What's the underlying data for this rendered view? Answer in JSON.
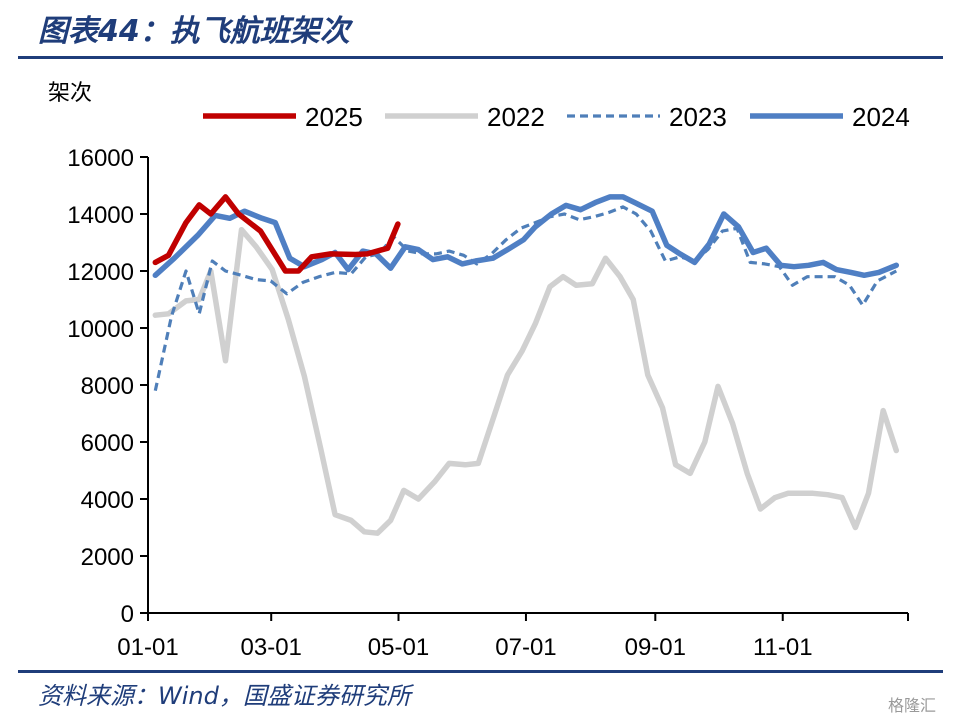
{
  "header": {
    "title": "图表44：执飞航班架次"
  },
  "footer": {
    "source": "资料来源：Wind，国盛证券研究所"
  },
  "watermark": {
    "text": "格隆汇"
  },
  "chart_data": {
    "type": "line",
    "title": "",
    "ylabel": "架次",
    "xlabel": "",
    "ylim": [
      0,
      16000
    ],
    "yticks": [
      0,
      2000,
      4000,
      6000,
      8000,
      10000,
      12000,
      14000,
      16000
    ],
    "ytick_labels": [
      "0",
      "2000",
      "4000",
      "6000",
      "8000",
      "10000",
      "12000",
      "14000",
      "16000"
    ],
    "xlim_weeks": [
      0,
      52
    ],
    "xticks": [
      {
        "label": "01-01",
        "week": 0
      },
      {
        "label": "03-01",
        "week": 8.43
      },
      {
        "label": "05-01",
        "week": 17.14
      },
      {
        "label": "07-01",
        "week": 25.86
      },
      {
        "label": "09-01",
        "week": 34.71
      },
      {
        "label": "11-01",
        "week": 43.43
      }
    ],
    "legend_position": "top",
    "grid": false,
    "series": [
      {
        "name": "2025",
        "color": "#C00000",
        "style": "solid",
        "width": 5.5,
        "points": [
          [
            0.5,
            12300
          ],
          [
            1.4,
            12550
          ],
          [
            2.6,
            13700
          ],
          [
            3.5,
            14320
          ],
          [
            4.3,
            14000
          ],
          [
            5.3,
            14600
          ],
          [
            6.2,
            14000
          ],
          [
            7.7,
            13400
          ],
          [
            9.4,
            12000
          ],
          [
            10.3,
            12000
          ],
          [
            11.2,
            12500
          ],
          [
            12.5,
            12600
          ],
          [
            14.2,
            12580
          ],
          [
            15.0,
            12600
          ],
          [
            16.4,
            12800
          ],
          [
            17.1,
            13650
          ]
        ]
      },
      {
        "name": "2022",
        "color": "#D0D0D0",
        "style": "solid",
        "width": 5.5,
        "points": [
          [
            0.5,
            10450
          ],
          [
            1.4,
            10500
          ],
          [
            2.6,
            10950
          ],
          [
            3.5,
            11000
          ],
          [
            4.3,
            12000
          ],
          [
            5.3,
            8850
          ],
          [
            6.4,
            13450
          ],
          [
            7.4,
            12850
          ],
          [
            8.5,
            12050
          ],
          [
            9.6,
            10300
          ],
          [
            10.7,
            8300
          ],
          [
            11.8,
            5800
          ],
          [
            12.8,
            3450
          ],
          [
            13.9,
            3250
          ],
          [
            14.8,
            2850
          ],
          [
            15.7,
            2800
          ],
          [
            16.6,
            3250
          ],
          [
            17.5,
            4300
          ],
          [
            18.5,
            4000
          ],
          [
            19.6,
            4600
          ],
          [
            20.6,
            5250
          ],
          [
            21.7,
            5200
          ],
          [
            22.6,
            5250
          ],
          [
            23.7,
            6950
          ],
          [
            24.6,
            8350
          ],
          [
            25.6,
            9200
          ],
          [
            26.5,
            10150
          ],
          [
            27.5,
            11450
          ],
          [
            28.4,
            11800
          ],
          [
            29.3,
            11500
          ],
          [
            30.4,
            11550
          ],
          [
            31.3,
            12450
          ],
          [
            32.3,
            11800
          ],
          [
            33.2,
            11000
          ],
          [
            34.2,
            8350
          ],
          [
            35.2,
            7200
          ],
          [
            36.1,
            5200
          ],
          [
            37.1,
            4900
          ],
          [
            38.1,
            6000
          ],
          [
            39.0,
            7950
          ],
          [
            40.0,
            6650
          ],
          [
            41.0,
            4900
          ],
          [
            41.9,
            3650
          ],
          [
            42.9,
            4050
          ],
          [
            43.8,
            4200
          ],
          [
            45.5,
            4200
          ],
          [
            46.5,
            4150
          ],
          [
            47.5,
            4050
          ],
          [
            48.4,
            3000
          ],
          [
            49.3,
            4200
          ],
          [
            50.3,
            7100
          ],
          [
            51.2,
            5700
          ]
        ]
      },
      {
        "name": "2023",
        "color": "#4F7FB9",
        "style": "dashed",
        "width": 3.2,
        "points": [
          [
            0.5,
            7800
          ],
          [
            1.6,
            10400
          ],
          [
            2.6,
            12000
          ],
          [
            3.5,
            10500
          ],
          [
            4.4,
            12350
          ],
          [
            5.3,
            12000
          ],
          [
            6.4,
            11850
          ],
          [
            7.4,
            11700
          ],
          [
            8.4,
            11650
          ],
          [
            9.5,
            11200
          ],
          [
            10.6,
            11600
          ],
          [
            11.7,
            11800
          ],
          [
            12.8,
            11950
          ],
          [
            13.9,
            11900
          ],
          [
            14.9,
            12500
          ],
          [
            15.8,
            12600
          ],
          [
            16.8,
            13200
          ],
          [
            17.8,
            12700
          ],
          [
            18.8,
            12600
          ],
          [
            19.7,
            12600
          ],
          [
            20.6,
            12700
          ],
          [
            21.6,
            12550
          ],
          [
            22.5,
            12250
          ],
          [
            23.5,
            12600
          ],
          [
            24.5,
            13100
          ],
          [
            25.5,
            13500
          ],
          [
            26.5,
            13700
          ],
          [
            27.5,
            13900
          ],
          [
            28.5,
            14000
          ],
          [
            29.5,
            13800
          ],
          [
            30.5,
            13900
          ],
          [
            31.5,
            14050
          ],
          [
            32.5,
            14250
          ],
          [
            33.4,
            14000
          ],
          [
            34.4,
            13400
          ],
          [
            35.4,
            12350
          ],
          [
            36.4,
            12500
          ],
          [
            37.4,
            12350
          ],
          [
            38.3,
            12750
          ],
          [
            39.3,
            13400
          ],
          [
            40.3,
            13500
          ],
          [
            41.2,
            12300
          ],
          [
            42.2,
            12250
          ],
          [
            43.2,
            12150
          ],
          [
            44.1,
            11500
          ],
          [
            45.1,
            11800
          ],
          [
            46.0,
            11800
          ],
          [
            47.0,
            11800
          ],
          [
            48.0,
            11500
          ],
          [
            48.9,
            10800
          ],
          [
            49.9,
            11650
          ],
          [
            51.2,
            12000
          ]
        ]
      },
      {
        "name": "2024",
        "color": "#4F7FC4",
        "style": "solid",
        "width": 5.5,
        "points": [
          [
            0.5,
            11850
          ],
          [
            1.8,
            12450
          ],
          [
            3.4,
            13250
          ],
          [
            4.6,
            13950
          ],
          [
            5.6,
            13850
          ],
          [
            6.6,
            14100
          ],
          [
            7.8,
            13850
          ],
          [
            8.7,
            13700
          ],
          [
            9.7,
            12450
          ],
          [
            10.7,
            12150
          ],
          [
            11.9,
            12400
          ],
          [
            12.8,
            12650
          ],
          [
            13.7,
            12050
          ],
          [
            14.7,
            12700
          ],
          [
            15.6,
            12600
          ],
          [
            16.6,
            12100
          ],
          [
            17.6,
            12850
          ],
          [
            18.5,
            12750
          ],
          [
            19.5,
            12400
          ],
          [
            20.5,
            12500
          ],
          [
            21.5,
            12250
          ],
          [
            22.4,
            12350
          ],
          [
            23.6,
            12450
          ],
          [
            24.6,
            12750
          ],
          [
            25.7,
            13100
          ],
          [
            26.5,
            13550
          ],
          [
            27.6,
            14000
          ],
          [
            28.6,
            14300
          ],
          [
            29.6,
            14150
          ],
          [
            30.6,
            14400
          ],
          [
            31.6,
            14600
          ],
          [
            32.5,
            14600
          ],
          [
            33.5,
            14350
          ],
          [
            34.5,
            14100
          ],
          [
            35.5,
            12900
          ],
          [
            36.4,
            12600
          ],
          [
            37.4,
            12300
          ],
          [
            38.4,
            12950
          ],
          [
            39.4,
            14000
          ],
          [
            40.4,
            13550
          ],
          [
            41.4,
            12650
          ],
          [
            42.3,
            12800
          ],
          [
            43.3,
            12200
          ],
          [
            44.2,
            12150
          ],
          [
            45.2,
            12200
          ],
          [
            46.2,
            12300
          ],
          [
            47.1,
            12050
          ],
          [
            48.1,
            11950
          ],
          [
            49.0,
            11850
          ],
          [
            50.0,
            11950
          ],
          [
            51.2,
            12200
          ]
        ]
      }
    ]
  }
}
